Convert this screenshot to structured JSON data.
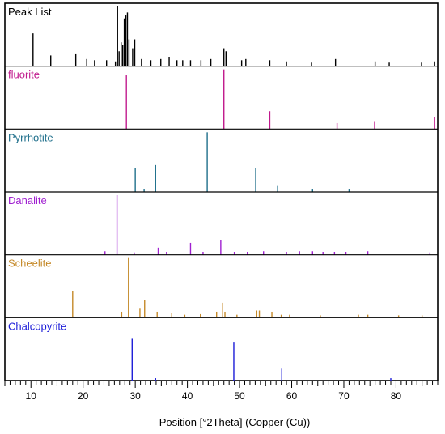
{
  "chart_data": {
    "type": "bar",
    "subtype": "stacked-stick-patterns",
    "xlabel": "Position [°2Theta] (Copper (Cu))",
    "xlim": [
      5,
      88
    ],
    "x_ticks": [
      10,
      20,
      30,
      40,
      50,
      60,
      70,
      80
    ],
    "x_tick_labels": [
      "10",
      "20",
      "30",
      "40",
      "50",
      "60",
      "70",
      "80"
    ],
    "grid": false,
    "y_axis_shown": false,
    "panels": [
      {
        "name": "Peak List",
        "color": "#000000",
        "peaks": [
          {
            "x": 10.4,
            "y": 0.55
          },
          {
            "x": 13.8,
            "y": 0.18
          },
          {
            "x": 18.6,
            "y": 0.2
          },
          {
            "x": 20.7,
            "y": 0.12
          },
          {
            "x": 22.2,
            "y": 0.1
          },
          {
            "x": 24.5,
            "y": 0.1
          },
          {
            "x": 26.2,
            "y": 0.08
          },
          {
            "x": 26.6,
            "y": 1.0
          },
          {
            "x": 26.9,
            "y": 0.25
          },
          {
            "x": 27.3,
            "y": 0.4
          },
          {
            "x": 27.6,
            "y": 0.35
          },
          {
            "x": 27.9,
            "y": 0.8
          },
          {
            "x": 28.2,
            "y": 0.85
          },
          {
            "x": 28.5,
            "y": 0.9
          },
          {
            "x": 28.8,
            "y": 0.45
          },
          {
            "x": 29.5,
            "y": 0.3
          },
          {
            "x": 29.9,
            "y": 0.45
          },
          {
            "x": 31.2,
            "y": 0.12
          },
          {
            "x": 33.0,
            "y": 0.1
          },
          {
            "x": 34.9,
            "y": 0.12
          },
          {
            "x": 36.5,
            "y": 0.15
          },
          {
            "x": 38.0,
            "y": 0.1
          },
          {
            "x": 39.1,
            "y": 0.1
          },
          {
            "x": 40.6,
            "y": 0.1
          },
          {
            "x": 42.6,
            "y": 0.1
          },
          {
            "x": 44.5,
            "y": 0.12
          },
          {
            "x": 47.0,
            "y": 0.3
          },
          {
            "x": 47.4,
            "y": 0.25
          },
          {
            "x": 50.4,
            "y": 0.1
          },
          {
            "x": 51.2,
            "y": 0.12
          },
          {
            "x": 55.8,
            "y": 0.1
          },
          {
            "x": 59.0,
            "y": 0.08
          },
          {
            "x": 63.8,
            "y": 0.06
          },
          {
            "x": 68.4,
            "y": 0.12
          },
          {
            "x": 76.0,
            "y": 0.08
          },
          {
            "x": 78.7,
            "y": 0.06
          },
          {
            "x": 84.9,
            "y": 0.06
          },
          {
            "x": 87.4,
            "y": 0.08
          }
        ]
      },
      {
        "name": "fluorite",
        "color": "#c0188c",
        "peaks": [
          {
            "x": 28.3,
            "y": 0.9
          },
          {
            "x": 47.0,
            "y": 1.0
          },
          {
            "x": 55.8,
            "y": 0.3
          },
          {
            "x": 68.7,
            "y": 0.1
          },
          {
            "x": 75.9,
            "y": 0.12
          },
          {
            "x": 87.4,
            "y": 0.2
          }
        ]
      },
      {
        "name": "Pyrrhotite",
        "color": "#1f6f8b",
        "peaks": [
          {
            "x": 30.0,
            "y": 0.4
          },
          {
            "x": 31.7,
            "y": 0.05
          },
          {
            "x": 33.9,
            "y": 0.45
          },
          {
            "x": 43.8,
            "y": 1.0
          },
          {
            "x": 53.1,
            "y": 0.4
          },
          {
            "x": 57.3,
            "y": 0.1
          },
          {
            "x": 64.0,
            "y": 0.04
          },
          {
            "x": 71.0,
            "y": 0.04
          }
        ]
      },
      {
        "name": "Danalite",
        "color": "#a020d0",
        "peaks": [
          {
            "x": 24.2,
            "y": 0.06
          },
          {
            "x": 26.5,
            "y": 1.0
          },
          {
            "x": 29.8,
            "y": 0.04
          },
          {
            "x": 34.4,
            "y": 0.12
          },
          {
            "x": 36.0,
            "y": 0.05
          },
          {
            "x": 40.6,
            "y": 0.2
          },
          {
            "x": 43.0,
            "y": 0.05
          },
          {
            "x": 46.4,
            "y": 0.25
          },
          {
            "x": 49.0,
            "y": 0.05
          },
          {
            "x": 51.5,
            "y": 0.05
          },
          {
            "x": 54.6,
            "y": 0.06
          },
          {
            "x": 59.0,
            "y": 0.05
          },
          {
            "x": 61.5,
            "y": 0.06
          },
          {
            "x": 64.0,
            "y": 0.06
          },
          {
            "x": 66.0,
            "y": 0.05
          },
          {
            "x": 68.2,
            "y": 0.05
          },
          {
            "x": 70.4,
            "y": 0.05
          },
          {
            "x": 74.6,
            "y": 0.06
          },
          {
            "x": 86.5,
            "y": 0.04
          }
        ]
      },
      {
        "name": "Scheelite",
        "color": "#c58a2a",
        "peaks": [
          {
            "x": 18.0,
            "y": 0.45
          },
          {
            "x": 27.4,
            "y": 0.1
          },
          {
            "x": 28.7,
            "y": 1.0
          },
          {
            "x": 30.9,
            "y": 0.15
          },
          {
            "x": 31.8,
            "y": 0.3
          },
          {
            "x": 34.2,
            "y": 0.1
          },
          {
            "x": 37.0,
            "y": 0.08
          },
          {
            "x": 39.5,
            "y": 0.05
          },
          {
            "x": 42.5,
            "y": 0.06
          },
          {
            "x": 45.6,
            "y": 0.1
          },
          {
            "x": 46.7,
            "y": 0.25
          },
          {
            "x": 47.2,
            "y": 0.1
          },
          {
            "x": 49.5,
            "y": 0.05
          },
          {
            "x": 53.3,
            "y": 0.12
          },
          {
            "x": 53.8,
            "y": 0.12
          },
          {
            "x": 56.2,
            "y": 0.1
          },
          {
            "x": 58.0,
            "y": 0.05
          },
          {
            "x": 59.6,
            "y": 0.05
          },
          {
            "x": 65.5,
            "y": 0.04
          },
          {
            "x": 72.8,
            "y": 0.05
          },
          {
            "x": 74.6,
            "y": 0.05
          },
          {
            "x": 80.5,
            "y": 0.04
          },
          {
            "x": 85.0,
            "y": 0.04
          }
        ]
      },
      {
        "name": "Chalcopyrite",
        "color": "#1c1cd8",
        "peaks": [
          {
            "x": 29.4,
            "y": 0.7
          },
          {
            "x": 33.9,
            "y": 0.04
          },
          {
            "x": 48.9,
            "y": 0.65
          },
          {
            "x": 58.1,
            "y": 0.2
          },
          {
            "x": 79.0,
            "y": 0.04
          }
        ]
      }
    ]
  }
}
